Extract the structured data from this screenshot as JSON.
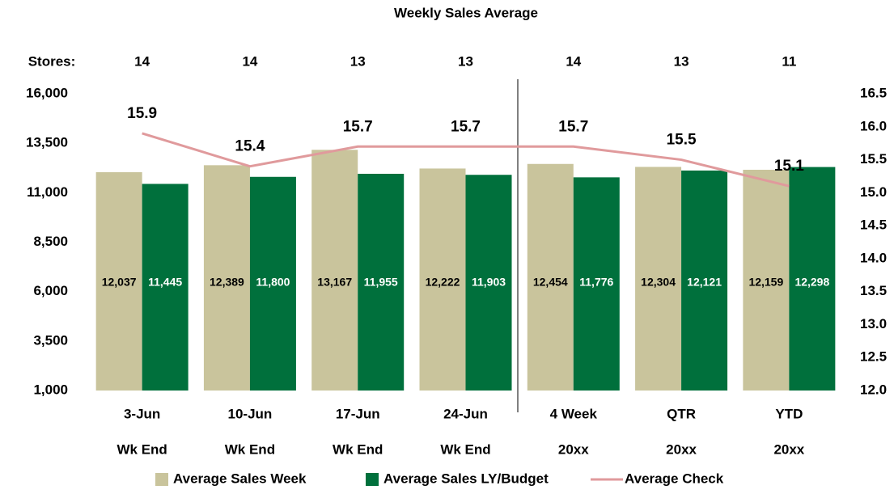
{
  "chart_data": {
    "type": "bar_line",
    "title": "Weekly Sales Average",
    "stores": {
      "label": "Stores:",
      "values": [
        14,
        14,
        13,
        13,
        14,
        13,
        11
      ]
    },
    "categories": [
      "3-Jun",
      "10-Jun",
      "17-Jun",
      "24-Jun",
      "4 Week",
      "QTR",
      "YTD"
    ],
    "sublabels": [
      "Wk End",
      "Wk End",
      "Wk End",
      "Wk End",
      "20xx",
      "20xx",
      "20xx"
    ],
    "series": [
      {
        "name": "Average Sales Week",
        "color": "#c9c49c",
        "type": "bar",
        "values": [
          12037,
          12389,
          13167,
          12222,
          12454,
          12304,
          12159
        ],
        "value_labels": [
          "12,037",
          "12,389",
          "13,167",
          "12,222",
          "12,454",
          "12,304",
          "12,159"
        ]
      },
      {
        "name": "Average Sales LY/Budget",
        "color": "#00703c",
        "type": "bar",
        "values": [
          11445,
          11800,
          11955,
          11903,
          11776,
          12121,
          12298
        ],
        "value_labels": [
          "11,445",
          "11,800",
          "11,955",
          "11,903",
          "11,776",
          "12,121",
          "12,298"
        ]
      },
      {
        "name": "Average Check",
        "color": "#e09a9c",
        "type": "line",
        "axis": "y2",
        "values": [
          15.9,
          15.4,
          15.7,
          15.7,
          15.7,
          15.5,
          15.1
        ]
      }
    ],
    "ylim": [
      1000,
      16000
    ],
    "yticks": [
      {
        "value": 1000,
        "label": "1,000"
      },
      {
        "value": 3500,
        "label": "3,500"
      },
      {
        "value": 6000,
        "label": "6,000"
      },
      {
        "value": 8500,
        "label": "8,500"
      },
      {
        "value": 11000,
        "label": "11,000"
      },
      {
        "value": 13500,
        "label": "13,500"
      },
      {
        "value": 16000,
        "label": "16,000"
      }
    ],
    "y2lim": [
      12.0,
      16.5
    ],
    "y2ticks": [
      {
        "value": 12,
        "label": "12.0"
      },
      12.5,
      {
        "value": 13,
        "label": "13.0"
      },
      13.5,
      {
        "value": 14,
        "label": "14.0"
      },
      14.5,
      {
        "value": 15,
        "label": "15.0"
      },
      15.5,
      {
        "value": 16,
        "label": "16.0"
      },
      16.5
    ],
    "legend": "bottom"
  }
}
